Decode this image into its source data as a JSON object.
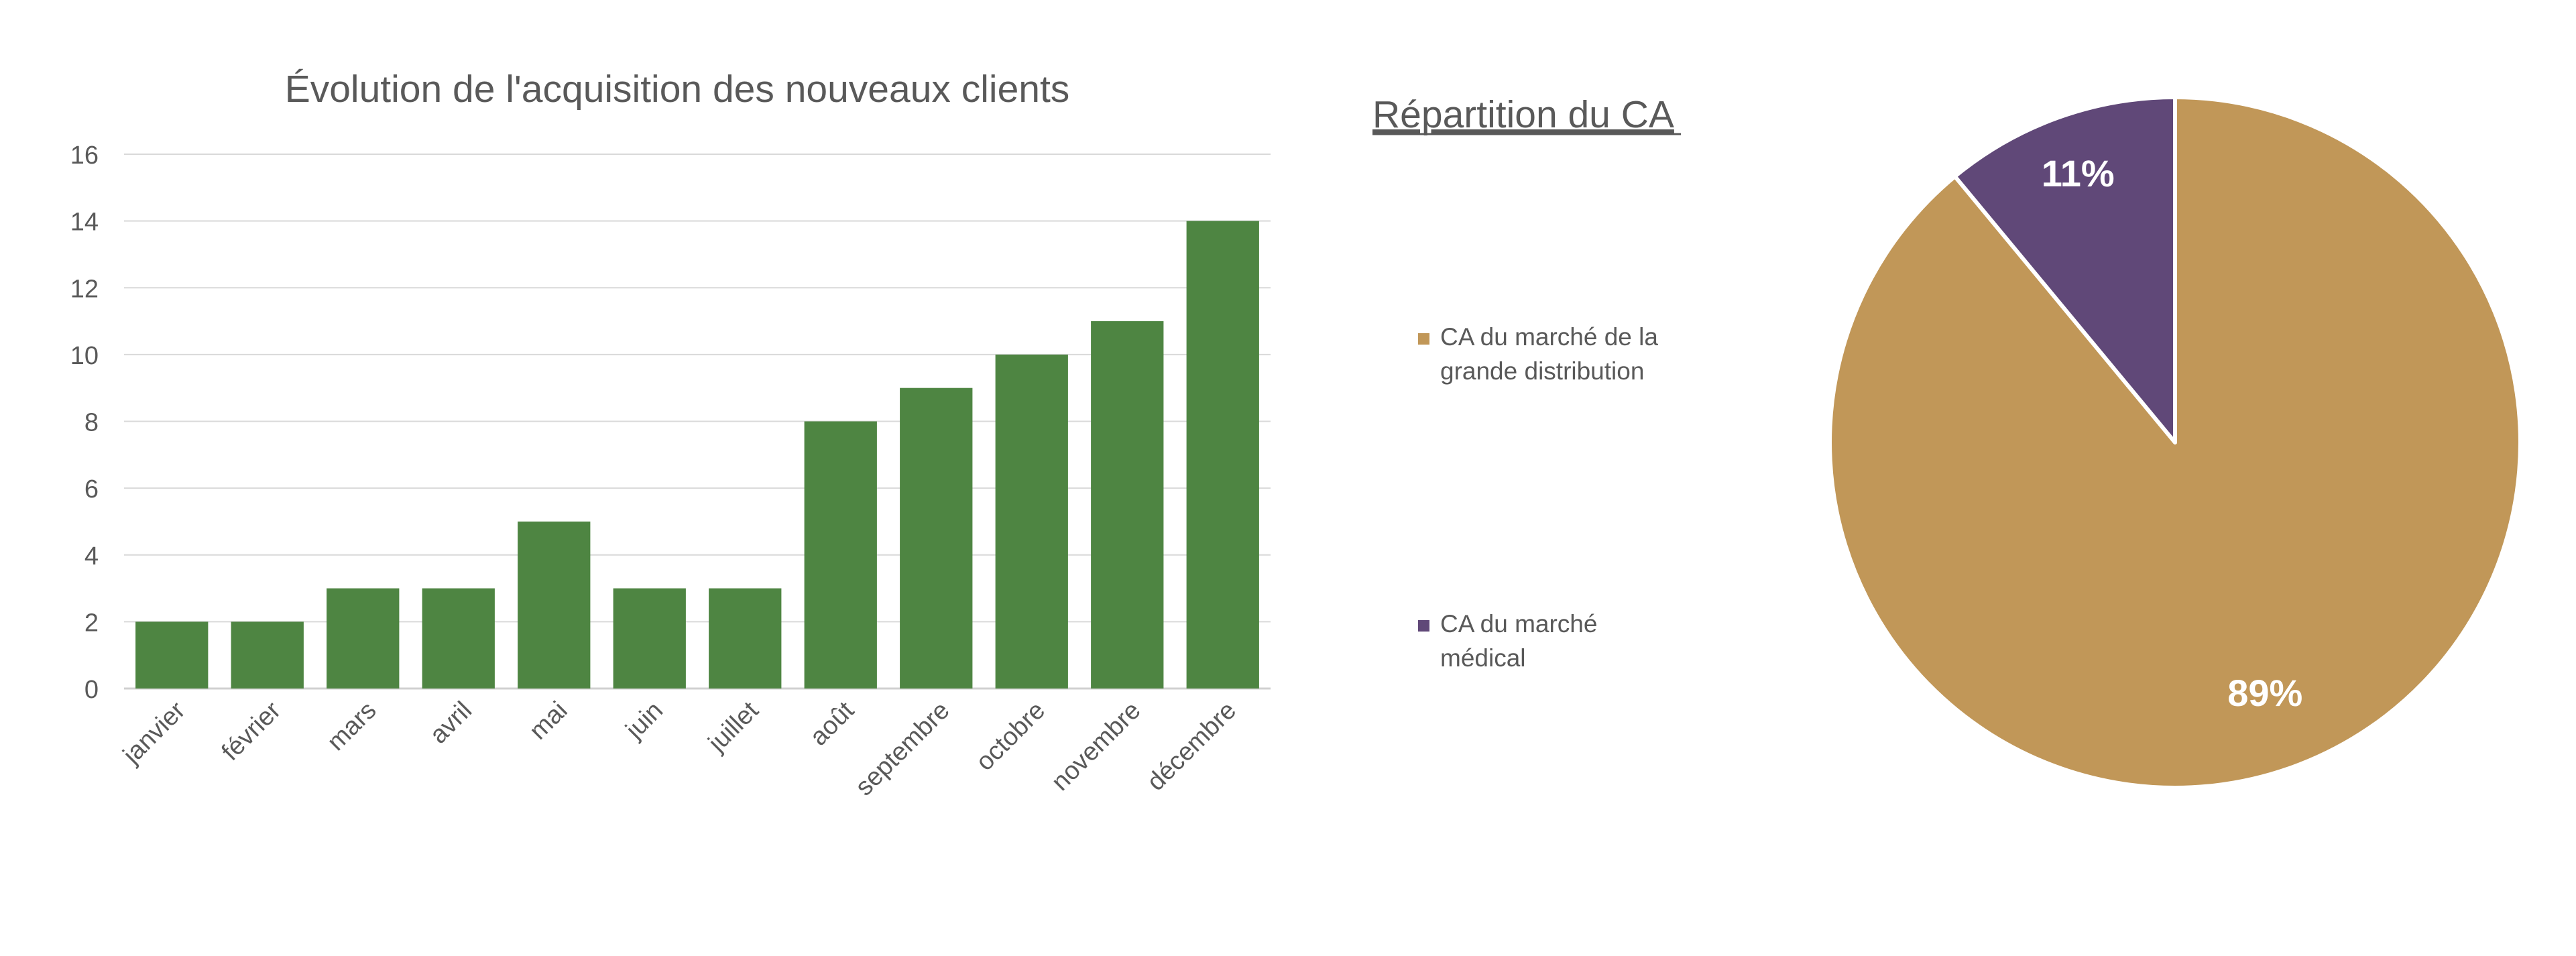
{
  "chart_data": [
    {
      "type": "bar",
      "title": "Évolution de l'acquisition des nouveaux clients",
      "xlabel": "",
      "ylabel": "",
      "categories": [
        "janvier",
        "février",
        "mars",
        "avril",
        "mai",
        "juin",
        "juillet",
        "août",
        "septembre",
        "octobre",
        "novembre",
        "décembre"
      ],
      "values": [
        2,
        2,
        3,
        3,
        5,
        3,
        3,
        8,
        9,
        10,
        11,
        14
      ],
      "ylim": [
        0,
        16
      ],
      "yticks": [
        0,
        2,
        4,
        6,
        8,
        10,
        12,
        14,
        16
      ],
      "grid": true,
      "legend": "none",
      "color": "#4e8542"
    },
    {
      "type": "pie",
      "title": "Répartition du CA",
      "labels": [
        "CA du marché de la grande distribution",
        "CA du marché médical"
      ],
      "legend_lines": [
        [
          "CA du marché de la",
          "grande distribution"
        ],
        [
          "CA du marché",
          "médical"
        ]
      ],
      "values": [
        89,
        11
      ],
      "data_labels": [
        "89%",
        "11%"
      ],
      "colors": [
        "#c19758",
        "#604878"
      ],
      "legend": "left"
    }
  ]
}
